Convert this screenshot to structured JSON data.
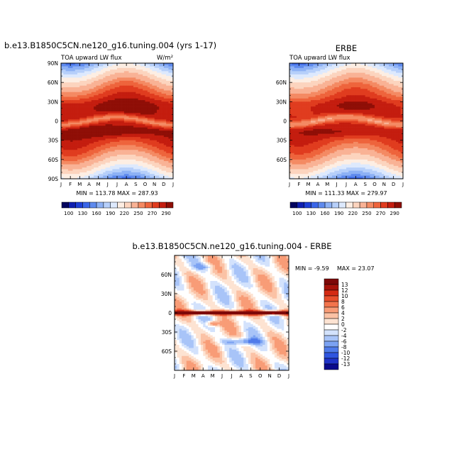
{
  "chart_data": [
    {
      "type": "heatmap",
      "suptitle": "b.e13.B1850C5CN.ne120_g16.tuning.004 (yrs 1-17)",
      "title_left": "TOA upward LW flux",
      "units": "W/m²",
      "xlabel_ticks": [
        "J",
        "F",
        "M",
        "A",
        "M",
        "J",
        "J",
        "A",
        "S",
        "O",
        "N",
        "D",
        "J"
      ],
      "ylabel_ticks": [
        "90N",
        "60N",
        "30N",
        "0",
        "30S",
        "60S",
        "90S"
      ],
      "ylim": [
        -90,
        90
      ],
      "stats": "MIN = 113.78  MAX = 287.93",
      "colorbar_labels": [
        "100",
        "130",
        "160",
        "190",
        "220",
        "250",
        "270",
        "290"
      ],
      "levels": [
        100,
        115,
        130,
        145,
        160,
        175,
        190,
        205,
        220,
        235,
        250,
        260,
        270,
        280,
        290
      ],
      "colors": [
        "#03045e",
        "#0f1fb0",
        "#1e3fd6",
        "#3a66e8",
        "#5e8aee",
        "#8db1f5",
        "#b6cffa",
        "#dde9fd",
        "#fdeee3",
        "#fcd4be",
        "#f9b295",
        "#f48a63",
        "#ee643c",
        "#e03c1f",
        "#c41d0f",
        "#8f0e06"
      ]
    },
    {
      "type": "heatmap",
      "suptitle": "ERBE",
      "title_left": "TOA upward LW flux",
      "xlabel_ticks": [
        "J",
        "F",
        "M",
        "A",
        "M",
        "J",
        "J",
        "A",
        "S",
        "O",
        "N",
        "D",
        "J"
      ],
      "ylabel_ticks": [
        "60N",
        "30N",
        "0",
        "30S",
        "60S"
      ],
      "ylim": [
        -90,
        90
      ],
      "stats": "MIN = 111.33  MAX = 279.97",
      "colorbar_labels": [
        "100",
        "130",
        "160",
        "190",
        "220",
        "250",
        "270",
        "290"
      ]
    },
    {
      "type": "heatmap",
      "suptitle": "b.e13.B1850C5CN.ne120_g16.tuning.004 - ERBE",
      "xlabel_ticks": [
        "J",
        "F",
        "M",
        "A",
        "M",
        "J",
        "J",
        "A",
        "S",
        "O",
        "N",
        "D",
        "J"
      ],
      "ylabel_ticks": [
        "60N",
        "30N",
        "0",
        "30S",
        "60S"
      ],
      "ylim": [
        -90,
        90
      ],
      "stats_min": "MIN =  -9.59",
      "stats_max": "MAX =  23.07",
      "colorbar_labels": [
        "13",
        "12",
        "10",
        "8",
        "6",
        "4",
        "2",
        "0",
        "-2",
        "-4",
        "-6",
        "-8",
        "-10",
        "-12",
        "-13"
      ],
      "levels": [
        -13,
        -12,
        -10,
        -8,
        -6,
        -4,
        -2,
        0,
        2,
        4,
        6,
        8,
        10,
        12,
        13
      ],
      "colors": [
        "#0a0a8c",
        "#1f33c8",
        "#2f55e0",
        "#4f7bea",
        "#7ba2f2",
        "#a8c4f8",
        "#d3e2fc",
        "#ffffff",
        "#fde3d2",
        "#fbc2a5",
        "#f89c77",
        "#f2744c",
        "#e84f2c",
        "#d42a13",
        "#a6120a",
        "#7d0808"
      ]
    }
  ]
}
